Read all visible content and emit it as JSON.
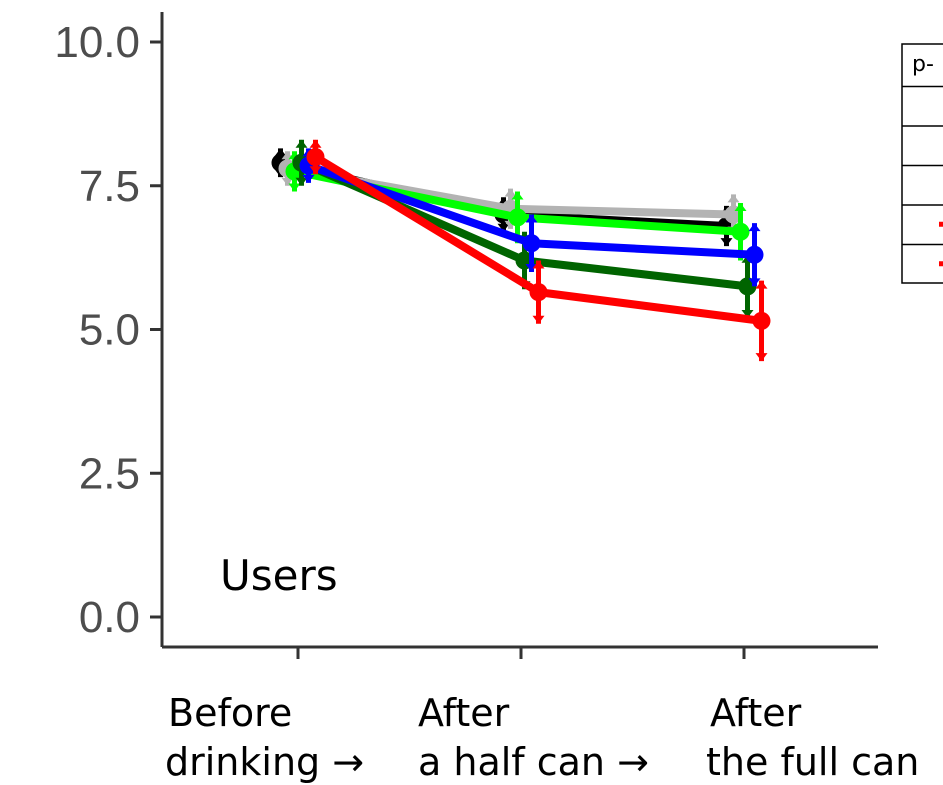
{
  "chart_data": {
    "type": "line",
    "title": "",
    "xlabel": "",
    "ylabel": "",
    "annotation": "Users",
    "categories": [
      {
        "line1": "Before",
        "line2": "drinking →"
      },
      {
        "line1": "After",
        "line2": "a half can →"
      },
      {
        "line1": "After",
        "line2": "the full can"
      }
    ],
    "ylim": [
      0,
      10
    ],
    "yticks": [
      "0.0",
      "2.5",
      "5.0",
      "7.5",
      "10.0"
    ],
    "grid": false,
    "series": [
      {
        "color": "#000000",
        "values": [
          7.9,
          7.0,
          6.8
        ],
        "err": [
          0.25,
          0.3,
          0.35
        ]
      },
      {
        "color": "#b3b3b3",
        "values": [
          7.8,
          7.1,
          7.0
        ],
        "err": [
          0.3,
          0.35,
          0.35
        ]
      },
      {
        "color": "#00ff00",
        "values": [
          7.75,
          6.95,
          6.7
        ],
        "err": [
          0.35,
          0.45,
          0.5
        ]
      },
      {
        "color": "#006400",
        "values": [
          7.9,
          6.2,
          5.75
        ],
        "err": [
          0.4,
          0.5,
          0.55
        ]
      },
      {
        "color": "#0000ff",
        "values": [
          7.85,
          6.5,
          6.3
        ],
        "err": [
          0.3,
          0.5,
          0.55
        ]
      },
      {
        "color": "#ff0000",
        "values": [
          8.0,
          5.65,
          5.15
        ],
        "err": [
          0.3,
          0.55,
          0.7
        ]
      }
    ],
    "legend_table": {
      "header": "p-",
      "row_count": 5,
      "marker_colors": [
        "",
        "",
        "",
        "#ff0000",
        "#ff0000"
      ]
    }
  }
}
